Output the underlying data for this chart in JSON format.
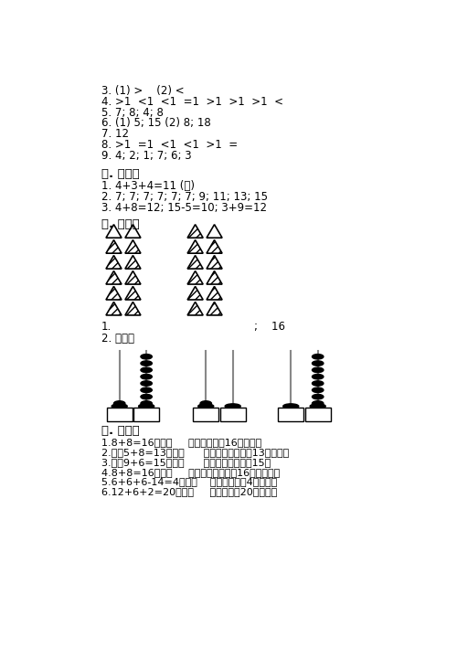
{
  "bg_color": "#ffffff",
  "text_color": "#000000",
  "section3_lines": [
    "3. (1) >    (2) <",
    "4. >1  <1  <1  =1  >1  >1  >1  <",
    "5. 7; 8; 4; 8",
    "6. (1) 5; 15 (2) 8; 18",
    "7. 12",
    "8. >1  =1  <1  <1  >1  =",
    "9. 4; 2; 1; 7; 6; 3"
  ],
  "section4_title": "四. 计算题",
  "section4_lines": [
    "1. 4+3+4=11 (朵)",
    "2. 7; 7; 7; 7; 7; 7; 9; 11; 13; 15",
    "3. 4+8=12; 15-5=10; 3+9=12"
  ],
  "section5_title": "五. 作图题",
  "section5_note3": "2. 如图：",
  "section6_title": "六. 解答题",
  "section6_lines": [
    "1.8+8=16（面）     答：一共需要16面旗帜。",
    "2.解：5+8=13（个）      答：两个班一共有13个毽子。",
    "3.解：9+6=15（元）      答：买一个文具盒15。",
    "4.8+8=16（条）     答：他们一共养了16条小金鱼。",
    "5.6+6+6-14=4（个）    答：现在还有4个气球。",
    "6.12+6+2=20（个）     答：一共有20个水饺。"
  ]
}
